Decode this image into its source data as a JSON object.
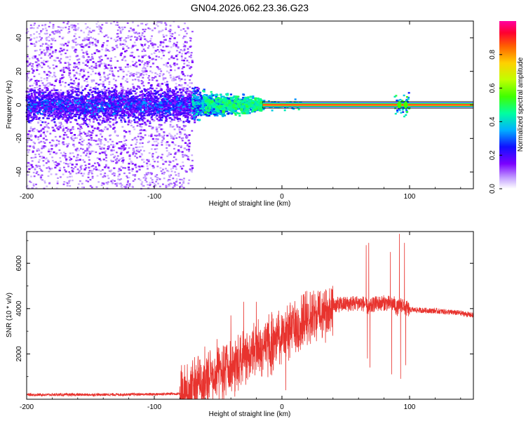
{
  "title": "GN04.2026.062.23.36.G23",
  "chart_data": [
    {
      "type": "heatmap",
      "xlabel": "Height of straight line (km)",
      "ylabel": "Frequency (Hz)",
      "xlim": [
        -200,
        150
      ],
      "ylim": [
        -50,
        50
      ],
      "xticks": [
        -200,
        -100,
        0,
        100
      ],
      "yticks": [
        -40,
        -20,
        0,
        20,
        40
      ],
      "colorbar": {
        "label": "Normalized spectral amplitude",
        "range": [
          0,
          1
        ],
        "ticks": [
          0.0,
          0.2,
          0.4,
          0.6,
          0.8
        ],
        "tick_labels": [
          "0.0",
          "0.2",
          "0.4",
          "0.6",
          "0.8"
        ]
      },
      "regions": [
        {
          "x": [
            -200,
            -70
          ],
          "description_value": "scattered low-amplitude energy across all frequencies, dense purple/blue band between -5 and 5 Hz"
        },
        {
          "x": [
            -70,
            -15
          ],
          "description_value": "band narrowing, amplitude 0.3-0.5 near 0 Hz"
        },
        {
          "x": [
            -15,
            150
          ],
          "description_value": "narrow carrier line at 0 Hz with amplitude ~0.9"
        }
      ],
      "carrier_band_hz": [
        -1.5,
        1.5
      ],
      "peak_events_km": [
        92,
        97
      ]
    },
    {
      "type": "line",
      "xlabel": "Height of straight line (km)",
      "ylabel": "SNR (10 * v/v)",
      "xlim": [
        -200,
        150
      ],
      "ylim": [
        0,
        7400
      ],
      "xticks": [
        -200,
        -100,
        0,
        100
      ],
      "yticks": [
        2000,
        4000,
        6000
      ],
      "color": "#e8332e",
      "envelope": {
        "x": [
          -200,
          -150,
          -100,
          -80,
          -75,
          -70,
          -60,
          -50,
          -40,
          -30,
          -20,
          -10,
          0,
          10,
          20,
          30,
          40,
          50,
          60,
          65,
          68,
          70,
          72,
          80,
          88,
          90,
          92,
          94,
          96,
          98,
          100,
          120,
          140,
          150
        ],
        "y": [
          200,
          200,
          220,
          250,
          400,
          700,
          1000,
          1300,
          1600,
          2000,
          2300,
          2600,
          2900,
          3400,
          3800,
          4000,
          4150,
          4200,
          4250,
          4200,
          4000,
          4100,
          4200,
          4250,
          4200,
          4000,
          4100,
          4200,
          4050,
          4000,
          3950,
          3900,
          3800,
          3700
        ]
      },
      "spikes": [
        {
          "x": 66,
          "y": 6800
        },
        {
          "x": 67,
          "y": 1800
        },
        {
          "x": 68,
          "y": 6900
        },
        {
          "x": 69,
          "y": 1400
        },
        {
          "x": 85,
          "y": 6500
        },
        {
          "x": 86,
          "y": 1100
        },
        {
          "x": 92,
          "y": 7300
        },
        {
          "x": 93,
          "y": 900
        },
        {
          "x": 96,
          "y": 6900
        },
        {
          "x": 97,
          "y": 1500
        },
        {
          "x": 3,
          "y": 400
        },
        {
          "x": -30,
          "y": 4300
        },
        {
          "x": -20,
          "y": 4300
        },
        {
          "x": -40,
          "y": 3700
        }
      ],
      "noise_amplitude": [
        {
          "x": [
            -200,
            -80
          ],
          "amp": 60
        },
        {
          "x": [
            -80,
            40
          ],
          "amp": 900
        },
        {
          "x": [
            40,
            100
          ],
          "amp": 350
        },
        {
          "x": [
            100,
            150
          ],
          "amp": 120
        }
      ]
    }
  ]
}
